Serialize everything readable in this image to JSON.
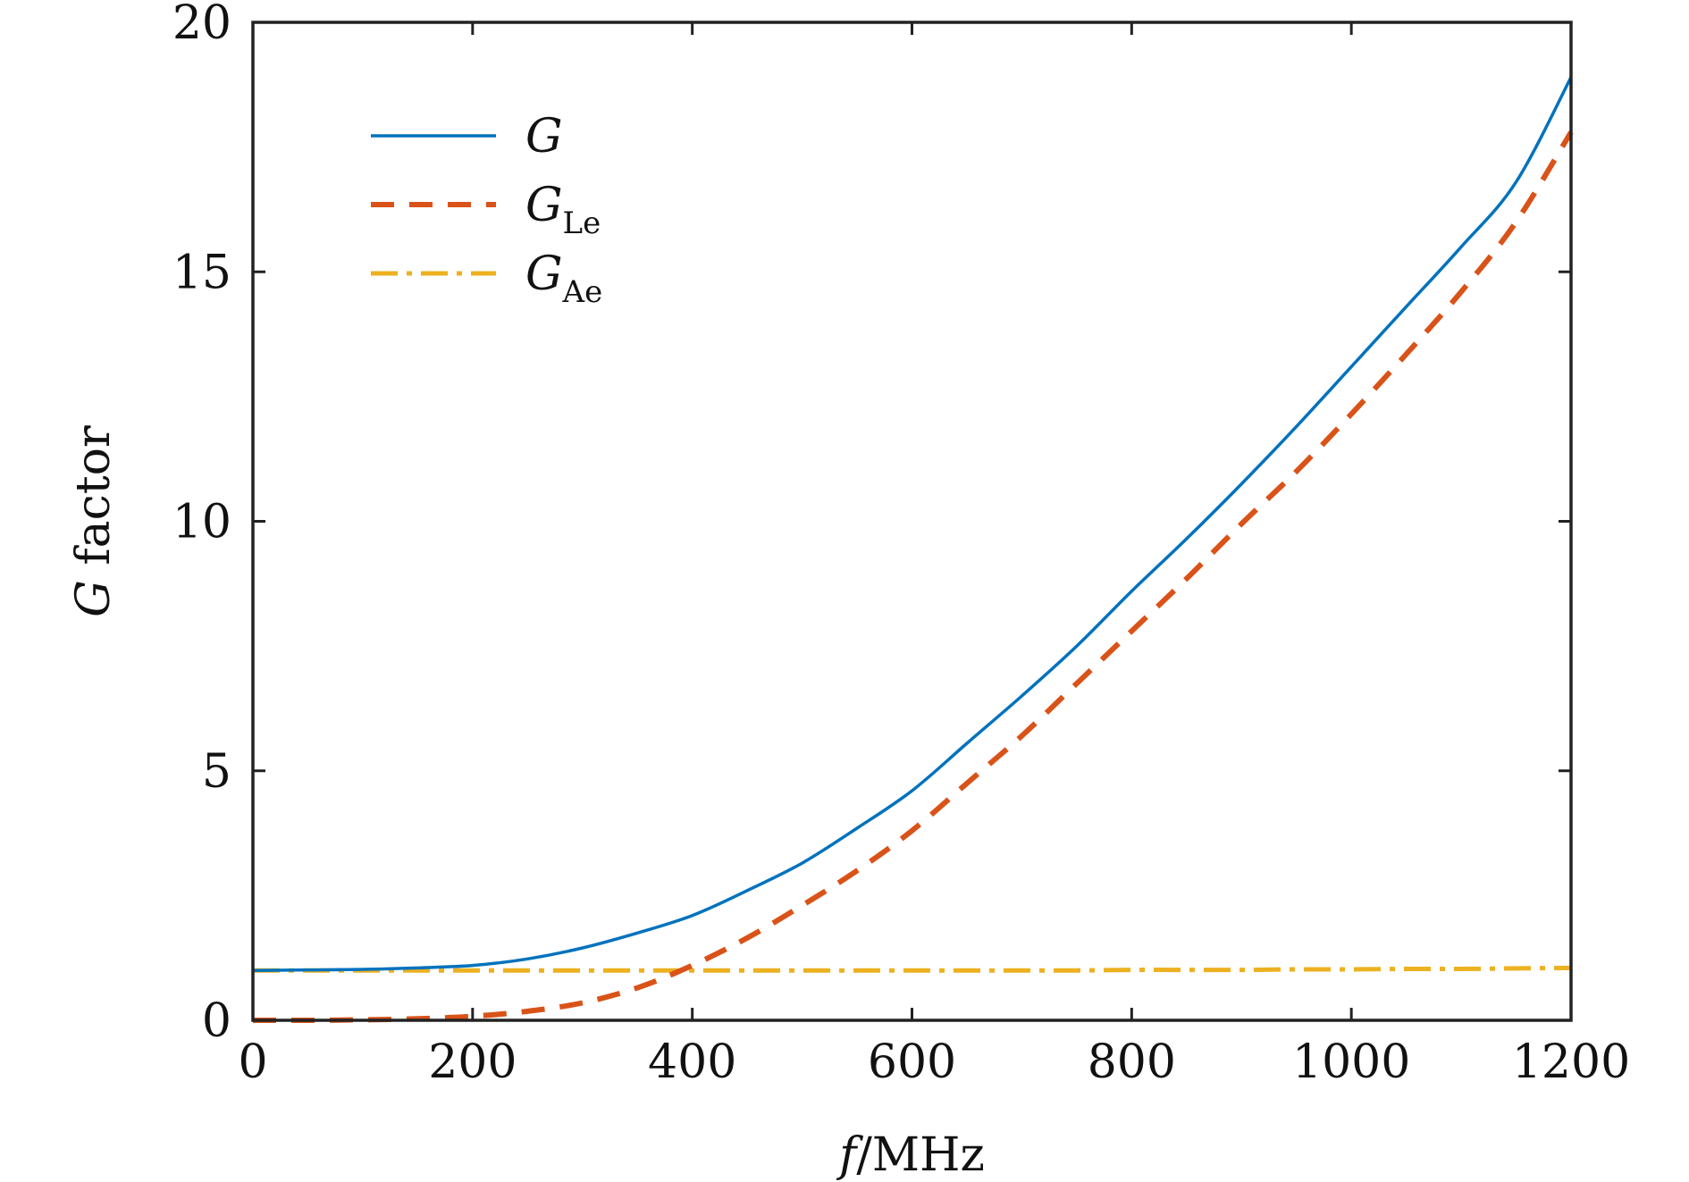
{
  "chart_data": {
    "type": "line",
    "xlabel": {
      "var": "f",
      "unit": "/MHz"
    },
    "ylabel": {
      "var": "G",
      "text": " factor"
    },
    "xlim": [
      0,
      1200
    ],
    "ylim": [
      0,
      20
    ],
    "x_ticks": [
      "0",
      "200",
      "400",
      "600",
      "800",
      "1000",
      "1200"
    ],
    "y_ticks": [
      "0",
      "5",
      "10",
      "15",
      "20"
    ],
    "grid": false,
    "legend_position": "top-left",
    "x": [
      0,
      50,
      100,
      150,
      200,
      250,
      300,
      350,
      400,
      450,
      500,
      550,
      600,
      650,
      700,
      750,
      800,
      850,
      900,
      950,
      1000,
      1050,
      1100,
      1150,
      1200
    ],
    "series": [
      {
        "name": "G",
        "name_sub": "",
        "color": "#0072BD",
        "style": "solid",
        "values": [
          1.0,
          1.01,
          1.02,
          1.05,
          1.1,
          1.23,
          1.45,
          1.75,
          2.1,
          2.6,
          3.15,
          3.85,
          4.6,
          5.55,
          6.5,
          7.5,
          8.6,
          9.65,
          10.75,
          11.9,
          13.1,
          14.3,
          15.5,
          16.8,
          18.9
        ]
      },
      {
        "name": "G",
        "name_sub": "Le",
        "color": "#D95319",
        "style": "dashed",
        "values": [
          0.0,
          0.0,
          0.01,
          0.03,
          0.08,
          0.18,
          0.35,
          0.65,
          1.1,
          1.65,
          2.3,
          3.0,
          3.8,
          4.75,
          5.7,
          6.75,
          7.8,
          8.85,
          9.95,
          11.0,
          12.15,
          13.35,
          14.6,
          16.0,
          17.8
        ]
      },
      {
        "name": "G",
        "name_sub": "Ae",
        "color": "#EDB120",
        "style": "dashdot",
        "values": [
          1.0,
          1.0,
          1.0,
          1.0,
          1.0,
          1.0,
          1.0,
          1.0,
          1.0,
          1.0,
          1.0,
          1.0,
          1.0,
          1.0,
          1.0,
          1.0,
          1.01,
          1.01,
          1.01,
          1.02,
          1.02,
          1.03,
          1.03,
          1.04,
          1.05
        ]
      }
    ]
  }
}
